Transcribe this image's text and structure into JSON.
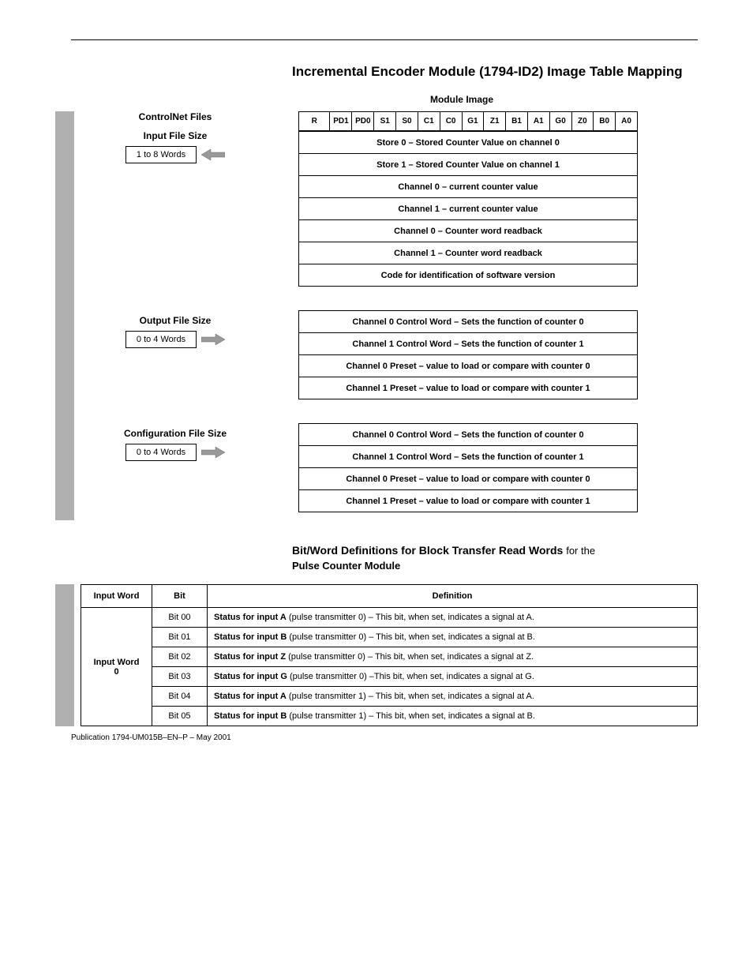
{
  "title": "Incremental Encoder Module (1794-ID2) Image Table Mapping",
  "module_image_label": "Module Image",
  "controlnet_label": "ControlNet Files",
  "input_fs": {
    "label": "Input File Size",
    "value": "1 to 8 Words"
  },
  "output_fs": {
    "label": "Output File Size",
    "value": "0 to 4 Words"
  },
  "config_fs": {
    "label": "Configuration File Size",
    "value": "0 to 4 Words"
  },
  "bit_headers": [
    "R",
    "PD1",
    "PD0",
    "S1",
    "S0",
    "C1",
    "C0",
    "G1",
    "Z1",
    "B1",
    "A1",
    "G0",
    "Z0",
    "B0",
    "A0"
  ],
  "input_rows": [
    "Store 0 – Stored Counter Value on channel 0",
    "Store 1 – Stored Counter Value on channel 1",
    "Channel 0 – current counter value",
    "Channel 1 – current counter value",
    "Channel 0 – Counter word readback",
    "Channel 1 – Counter word readback",
    "Code for identification of software version"
  ],
  "output_rows": [
    "Channel 0 Control Word – Sets the function of counter 0",
    "Channel 1 Control Word – Sets the function of counter 1",
    "Channel 0 Preset – value to load or compare with counter 0",
    "Channel 1 Preset – value to load or compare with counter 1"
  ],
  "config_rows": [
    "Channel 0 Control Word – Sets the function of counter 0",
    "Channel 1 Control Word – Sets the function of counter 1",
    "Channel 0 Preset – value to load or compare with counter 0",
    "Channel 1 Preset – value to load or compare with counter 1"
  ],
  "def_heading_1": "Bit/Word Definitions for Block Transfer Read Words",
  "def_heading_2": "for the",
  "def_heading_3": "Pulse Counter Module",
  "def_headers": [
    "Input Word",
    "Bit",
    "Definition"
  ],
  "def_word_label": "Input Word\n0",
  "def_rows": [
    {
      "bit": "Bit 00",
      "bold": "Status for input A",
      "rest": " (pulse transmitter 0) – This bit, when set, indicates a signal at A."
    },
    {
      "bit": "Bit 01",
      "bold": "Status for input B",
      "rest": " (pulse transmitter 0) – This bit, when set, indicates a signal at B."
    },
    {
      "bit": "Bit 02",
      "bold": "Status for input Z",
      "rest": " (pulse transmitter 0) – This bit, when set, indicates a signal at Z."
    },
    {
      "bit": "Bit 03",
      "bold": "Status for input G",
      "rest": " (pulse transmitter 0) –This bit, when set, indicates a signal at G."
    },
    {
      "bit": "Bit 04",
      "bold": "Status for input A",
      "rest": " (pulse transmitter 1) – This bit, when set, indicates a signal at A."
    },
    {
      "bit": "Bit 05",
      "bold": "Status for input B",
      "rest": " (pulse transmitter 1) – This bit, when set, indicates a signal at B."
    }
  ],
  "footer": "Publication 1794-UM015B–EN–P – May 2001"
}
